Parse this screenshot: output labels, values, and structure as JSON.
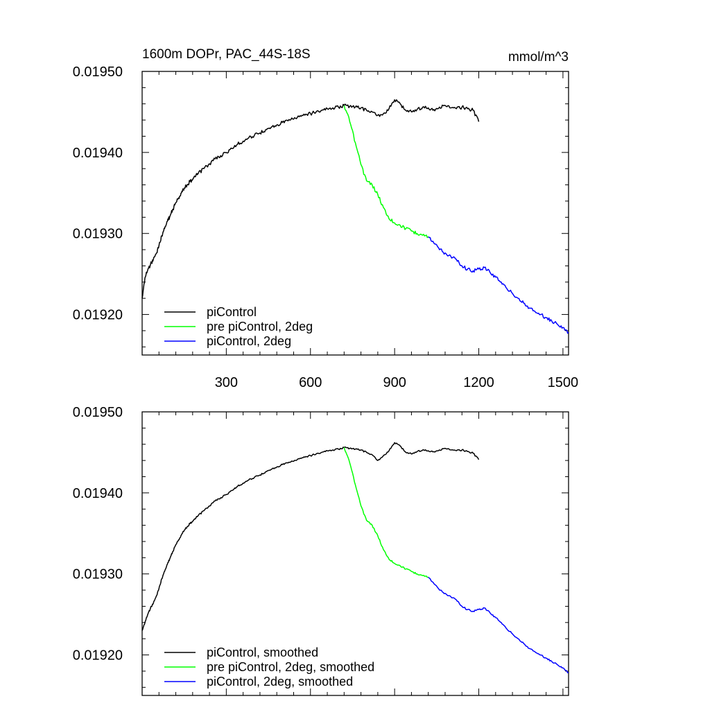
{
  "chart_data": [
    {
      "type": "line",
      "title": "1600m DOPr, PAC_44S-18S",
      "units": "mmol/m^3",
      "xlabel": "",
      "ylabel": "",
      "xlim": [
        0,
        1520
      ],
      "ylim": [
        0.01915,
        0.0195
      ],
      "x_ticks": [
        300,
        600,
        900,
        1200,
        1500
      ],
      "x_tick_labels": [
        "300",
        "600",
        "900",
        "1200",
        "1500"
      ],
      "y_ticks": [
        0.0192,
        0.0193,
        0.0194,
        0.0195
      ],
      "y_tick_labels": [
        "0.01920",
        "0.01930",
        "0.01940",
        "0.01950"
      ],
      "legend_position": "bottom-left",
      "series": [
        {
          "name": "piControl",
          "color": "#000000",
          "x": [
            0,
            10,
            20,
            30,
            40,
            50,
            60,
            70,
            80,
            90,
            100,
            110,
            120,
            130,
            140,
            150,
            160,
            170,
            180,
            190,
            200,
            220,
            240,
            260,
            280,
            300,
            320,
            340,
            360,
            380,
            400,
            420,
            440,
            460,
            480,
            500,
            520,
            540,
            560,
            580,
            600,
            620,
            640,
            660,
            680,
            700,
            720,
            740,
            760,
            780,
            800,
            820,
            840,
            860,
            880,
            900,
            920,
            940,
            960,
            980,
            1000,
            1020,
            1040,
            1060,
            1080,
            1100,
            1120,
            1140,
            1160,
            1180,
            1200
          ],
          "values": [
            0.01922,
            0.019245,
            0.019255,
            0.019262,
            0.019268,
            0.019275,
            0.019285,
            0.019297,
            0.019306,
            0.019315,
            0.019322,
            0.01933,
            0.019338,
            0.019344,
            0.01935,
            0.019356,
            0.01936,
            0.019364,
            0.019367,
            0.01937,
            0.019374,
            0.01938,
            0.019386,
            0.019392,
            0.019396,
            0.0194,
            0.019405,
            0.01941,
            0.019414,
            0.019418,
            0.019421,
            0.019424,
            0.019428,
            0.019431,
            0.019434,
            0.019437,
            0.019439,
            0.019441,
            0.019444,
            0.019446,
            0.019448,
            0.01945,
            0.019452,
            0.019454,
            0.019455,
            0.019456,
            0.019458,
            0.019457,
            0.019456,
            0.019455,
            0.019452,
            0.01945,
            0.019446,
            0.019448,
            0.019454,
            0.019465,
            0.01946,
            0.019452,
            0.01945,
            0.019453,
            0.019456,
            0.019455,
            0.019453,
            0.019456,
            0.019458,
            0.019455,
            0.019454,
            0.019456,
            0.019454,
            0.019452,
            0.019438
          ]
        },
        {
          "name": "pre piControl, 2deg",
          "color": "#00ff00",
          "x": [
            720,
            740,
            760,
            780,
            800,
            820,
            840,
            860,
            880,
            900,
            920,
            940,
            960,
            980,
            1000,
            1020
          ],
          "values": [
            0.019458,
            0.019438,
            0.019412,
            0.019385,
            0.019365,
            0.01936,
            0.019348,
            0.019332,
            0.019318,
            0.019313,
            0.01931,
            0.019306,
            0.019303,
            0.0193,
            0.019298,
            0.019296
          ]
        },
        {
          "name": "piControl, 2deg",
          "color": "#0000ff",
          "x": [
            1020,
            1040,
            1060,
            1080,
            1100,
            1120,
            1140,
            1160,
            1180,
            1200,
            1220,
            1240,
            1260,
            1280,
            1300,
            1320,
            1340,
            1360,
            1380,
            1400,
            1420,
            1440,
            1460,
            1480,
            1500,
            1520
          ],
          "values": [
            0.019296,
            0.019288,
            0.01928,
            0.019276,
            0.019272,
            0.019268,
            0.01926,
            0.019256,
            0.019254,
            0.019256,
            0.019258,
            0.019252,
            0.019246,
            0.01924,
            0.019232,
            0.019226,
            0.01922,
            0.019214,
            0.019208,
            0.019204,
            0.0192,
            0.019196,
            0.019192,
            0.019188,
            0.019184,
            0.019178
          ]
        }
      ]
    },
    {
      "type": "line",
      "title": "",
      "xlabel": "",
      "ylabel": "",
      "xlim": [
        0,
        1520
      ],
      "ylim": [
        0.01915,
        0.0195
      ],
      "x_ticks": [
        300,
        600,
        900,
        1200,
        1500
      ],
      "y_ticks": [
        0.0192,
        0.0193,
        0.0194,
        0.0195
      ],
      "y_tick_labels": [
        "0.01920",
        "0.01930",
        "0.01940",
        "0.01950"
      ],
      "legend_position": "bottom-left",
      "series": [
        {
          "name": "piControl, smoothed",
          "color": "#000000",
          "x": [
            0,
            10,
            20,
            30,
            40,
            50,
            60,
            70,
            80,
            90,
            100,
            110,
            120,
            130,
            140,
            150,
            160,
            170,
            180,
            190,
            200,
            220,
            240,
            260,
            280,
            300,
            320,
            340,
            360,
            380,
            400,
            420,
            440,
            460,
            480,
            500,
            520,
            540,
            560,
            580,
            600,
            620,
            640,
            660,
            680,
            700,
            720,
            740,
            760,
            780,
            800,
            820,
            840,
            860,
            880,
            900,
            920,
            940,
            960,
            980,
            1000,
            1020,
            1040,
            1060,
            1080,
            1100,
            1120,
            1140,
            1160,
            1180,
            1200
          ],
          "values": [
            0.01923,
            0.01924,
            0.01925,
            0.019258,
            0.019264,
            0.019272,
            0.019282,
            0.019294,
            0.019303,
            0.019312,
            0.01932,
            0.019328,
            0.019336,
            0.019342,
            0.019348,
            0.019354,
            0.019358,
            0.019362,
            0.019365,
            0.019368,
            0.019372,
            0.019378,
            0.019384,
            0.01939,
            0.019394,
            0.019398,
            0.019403,
            0.019408,
            0.019412,
            0.019416,
            0.019419,
            0.019422,
            0.019426,
            0.019429,
            0.019432,
            0.019435,
            0.019437,
            0.019439,
            0.019442,
            0.019444,
            0.019446,
            0.019448,
            0.01945,
            0.019452,
            0.019453,
            0.019454,
            0.019456,
            0.019455,
            0.019454,
            0.019453,
            0.01945,
            0.019447,
            0.01944,
            0.019446,
            0.019452,
            0.019462,
            0.019458,
            0.01945,
            0.019448,
            0.019451,
            0.019453,
            0.019452,
            0.019451,
            0.019453,
            0.019455,
            0.019453,
            0.019452,
            0.019453,
            0.019451,
            0.019449,
            0.019441
          ]
        },
        {
          "name": "pre piControl, 2deg, smoothed",
          "color": "#00ff00",
          "x": [
            720,
            740,
            760,
            780,
            800,
            820,
            840,
            860,
            880,
            900,
            920,
            940,
            960,
            980,
            1000,
            1020
          ],
          "values": [
            0.019456,
            0.019437,
            0.01941,
            0.019384,
            0.019366,
            0.01936,
            0.019347,
            0.01933,
            0.019318,
            0.019313,
            0.01931,
            0.019306,
            0.019303,
            0.0193,
            0.019298,
            0.019296
          ]
        },
        {
          "name": "piControl, 2deg, smoothed",
          "color": "#0000ff",
          "x": [
            1020,
            1040,
            1060,
            1080,
            1100,
            1120,
            1140,
            1160,
            1180,
            1200,
            1220,
            1240,
            1260,
            1280,
            1300,
            1320,
            1340,
            1360,
            1380,
            1400,
            1420,
            1440,
            1460,
            1480,
            1500,
            1520
          ],
          "values": [
            0.019296,
            0.019288,
            0.01928,
            0.019276,
            0.019272,
            0.019268,
            0.01926,
            0.019256,
            0.019254,
            0.019256,
            0.019258,
            0.019252,
            0.019246,
            0.01924,
            0.019232,
            0.019226,
            0.01922,
            0.019214,
            0.019208,
            0.019204,
            0.0192,
            0.019196,
            0.019192,
            0.019188,
            0.019184,
            0.019178
          ]
        }
      ]
    }
  ]
}
